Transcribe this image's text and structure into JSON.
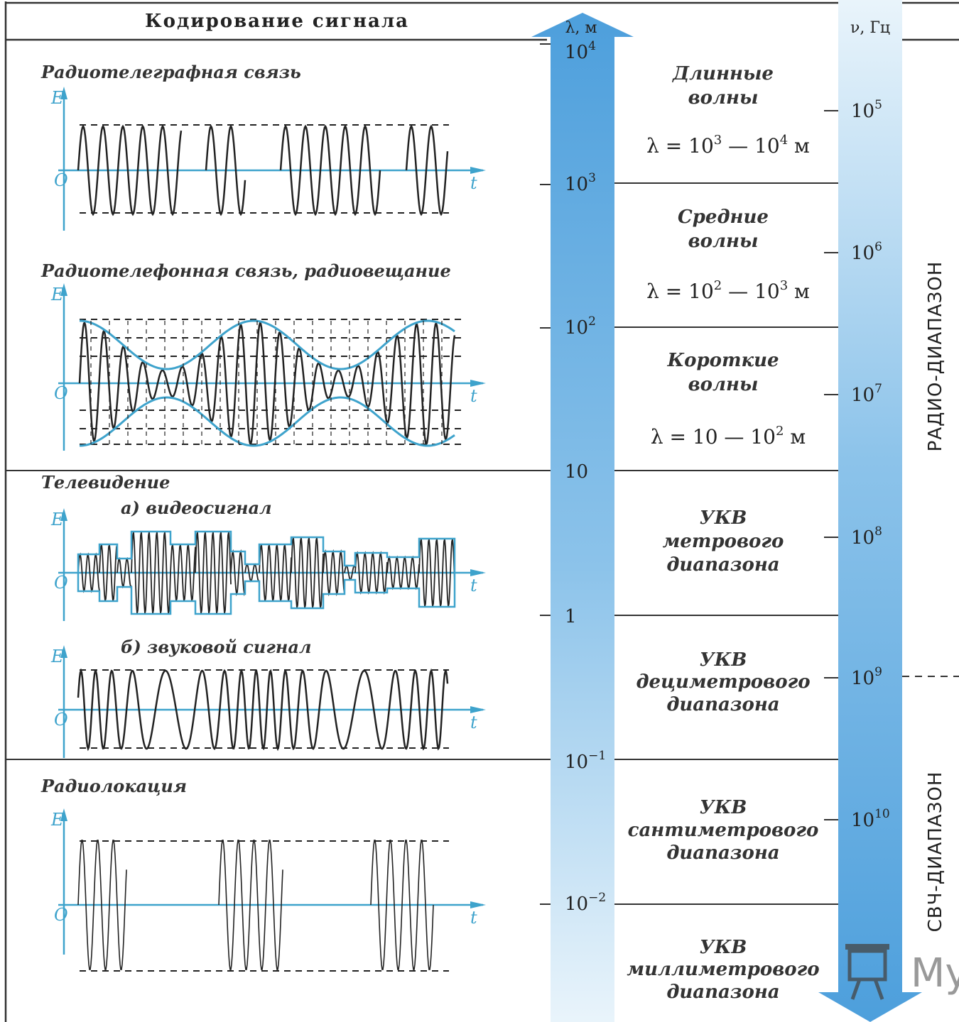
{
  "header": {
    "title": "Кодирование   сигнала"
  },
  "lambda_axis": {
    "label": "λ, м",
    "ticks": [
      {
        "base": "10",
        "exp": "4"
      },
      {
        "base": "10",
        "exp": "3"
      },
      {
        "base": "10",
        "exp": "2"
      },
      {
        "base": "10",
        "exp": ""
      },
      {
        "base": "1",
        "exp": ""
      },
      {
        "base": "10",
        "exp": "−1"
      },
      {
        "base": "10",
        "exp": "−2"
      }
    ]
  },
  "nu_axis": {
    "label": "ν, Гц",
    "ticks": [
      {
        "base": "10",
        "exp": "5"
      },
      {
        "base": "10",
        "exp": "6"
      },
      {
        "base": "10",
        "exp": "7"
      },
      {
        "base": "10",
        "exp": "8"
      },
      {
        "base": "10",
        "exp": "9"
      },
      {
        "base": "10",
        "exp": "10"
      }
    ]
  },
  "bands": [
    {
      "lines": [
        "Длинные",
        "волны"
      ],
      "range": {
        "a": "10",
        "ae": "3",
        "b": "10",
        "be": "4",
        "prefix": "λ = ",
        "unit": " м"
      }
    },
    {
      "lines": [
        "Средние",
        "волны"
      ],
      "range": {
        "a": "10",
        "ae": "2",
        "b": "10",
        "be": "3",
        "prefix": "λ = ",
        "unit": " м"
      }
    },
    {
      "lines": [
        "Короткие",
        "волны"
      ],
      "range": {
        "a": "10",
        "ae": "",
        "b": "10",
        "be": "2",
        "prefix": "λ = ",
        "unit": " м"
      }
    },
    {
      "lines": [
        "УКВ",
        "метрового",
        "диапазона"
      ]
    },
    {
      "lines": [
        "УКВ",
        "дециметрового",
        "диапазона"
      ]
    },
    {
      "lines": [
        "УКВ",
        "сантиметрового",
        "диапазона"
      ]
    },
    {
      "lines": [
        "УКВ",
        "миллиметрового",
        "диапазона"
      ]
    }
  ],
  "ranges": {
    "radio": "РАДИО-ДИАПАЗОН",
    "microwave": "СВЧ-ДИАПАЗОН"
  },
  "signals": {
    "telegraph": "Радиотелеграфная связь",
    "telephone": "Радиотелефонная связь, радиовещание",
    "tv": "Телевидение",
    "tv_video": "а) видеосигнал",
    "tv_audio": "б) звуковой сигнал",
    "radar": "Радиолокация"
  },
  "axis_letters": {
    "E": "E",
    "O": "O",
    "t": "t"
  },
  "colors": {
    "accent": "#3ea3cc",
    "band_fill": "#5aaee3",
    "ink": "#222222"
  },
  "watermark": {
    "icon": "projector-screen-icon",
    "text": "My"
  }
}
